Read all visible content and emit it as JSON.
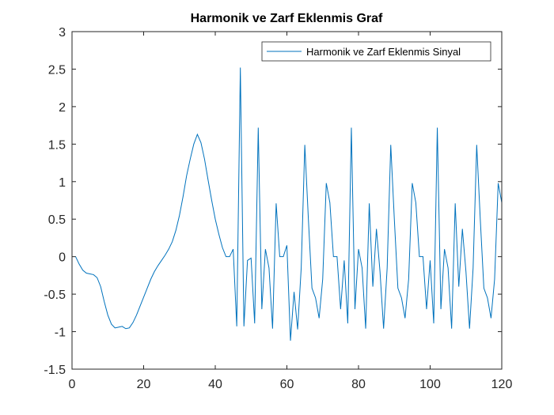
{
  "chart_data": {
    "type": "line",
    "title": "Harmonik ve Zarf Eklenmis Graf",
    "xlabel": "",
    "ylabel": "",
    "xlim": [
      0,
      120
    ],
    "ylim": [
      -1.5,
      3
    ],
    "xticks": [
      0,
      20,
      40,
      60,
      80,
      100,
      120
    ],
    "yticks": [
      -1.5,
      -1,
      -0.5,
      0,
      0.5,
      1,
      1.5,
      2,
      2.5,
      3
    ],
    "xtick_labels": [
      "0",
      "20",
      "40",
      "60",
      "80",
      "100",
      "120"
    ],
    "ytick_labels": [
      "-1.5",
      "-1",
      "-0.5",
      "0",
      "0.5",
      "1",
      "1.5",
      "2",
      "2.5",
      "3"
    ],
    "legend": {
      "location": "top-right"
    },
    "colors": {
      "series": "#0072bd",
      "axes": "#262626",
      "background": "#ffffff"
    },
    "series": [
      {
        "name": "Harmonik ve Zarf Eklenmis Sinyal",
        "x": [
          1,
          2,
          3,
          4,
          5,
          6,
          7,
          8,
          9,
          10,
          11,
          12,
          13,
          14,
          15,
          16,
          17,
          18,
          19,
          20,
          21,
          22,
          23,
          24,
          25,
          26,
          27,
          28,
          29,
          30,
          31,
          32,
          33,
          34,
          35,
          36,
          37,
          38,
          39,
          40,
          41,
          42,
          43,
          44,
          45,
          46,
          47,
          48,
          49,
          50,
          51,
          52,
          53,
          54,
          55,
          56,
          57,
          58,
          59,
          60,
          61,
          62,
          63,
          64,
          65,
          66,
          67,
          68,
          69,
          70,
          71,
          72,
          73,
          74,
          75,
          76,
          77,
          78,
          79,
          80,
          81,
          82,
          83,
          84,
          85,
          86,
          87,
          88,
          89,
          90,
          91,
          92,
          93,
          94,
          95,
          96,
          97,
          98,
          99,
          100,
          101,
          102,
          103,
          104,
          105,
          106,
          107,
          108,
          109,
          110,
          111,
          112,
          113,
          114,
          115,
          116,
          117,
          118,
          119,
          120
        ],
        "y": [
          0,
          -0.1,
          -0.18,
          -0.22,
          -0.23,
          -0.24,
          -0.28,
          -0.4,
          -0.6,
          -0.78,
          -0.9,
          -0.95,
          -0.94,
          -0.93,
          -0.96,
          -0.95,
          -0.88,
          -0.78,
          -0.66,
          -0.54,
          -0.42,
          -0.3,
          -0.2,
          -0.12,
          -0.05,
          0.02,
          0.1,
          0.2,
          0.35,
          0.55,
          0.8,
          1.08,
          1.3,
          1.5,
          1.63,
          1.52,
          1.3,
          1.02,
          0.75,
          0.5,
          0.3,
          0.12,
          0.0,
          0.0,
          0.1,
          -0.93,
          2.52,
          -0.93,
          -0.05,
          -0.02,
          -0.89,
          1.72,
          -0.7,
          0.1,
          -0.15,
          -0.96,
          0.71,
          0.0,
          0.0,
          0.15,
          -1.12,
          -0.47,
          -0.97,
          -0.15,
          1.49,
          0.5,
          -0.42,
          -0.55,
          -0.82,
          -0.3,
          0.98,
          0.72,
          0.0,
          0.0,
          -0.7,
          -0.05,
          -0.89,
          1.72,
          -0.7,
          0.1,
          -0.15,
          -0.96,
          0.71,
          -0.4,
          0.37,
          -0.2,
          -0.96,
          -0.15,
          1.49,
          0.5,
          -0.42,
          -0.55,
          -0.82,
          -0.3,
          0.98,
          0.72,
          0.0,
          0.0,
          -0.7,
          -0.05,
          -0.89,
          1.72,
          -0.7,
          0.1,
          -0.15,
          -0.96,
          0.71,
          -0.4,
          0.37,
          -0.2,
          -0.96,
          -0.15,
          1.49,
          0.5,
          -0.42,
          -0.55,
          -0.82,
          -0.3,
          0.98,
          0.72
        ]
      }
    ]
  }
}
